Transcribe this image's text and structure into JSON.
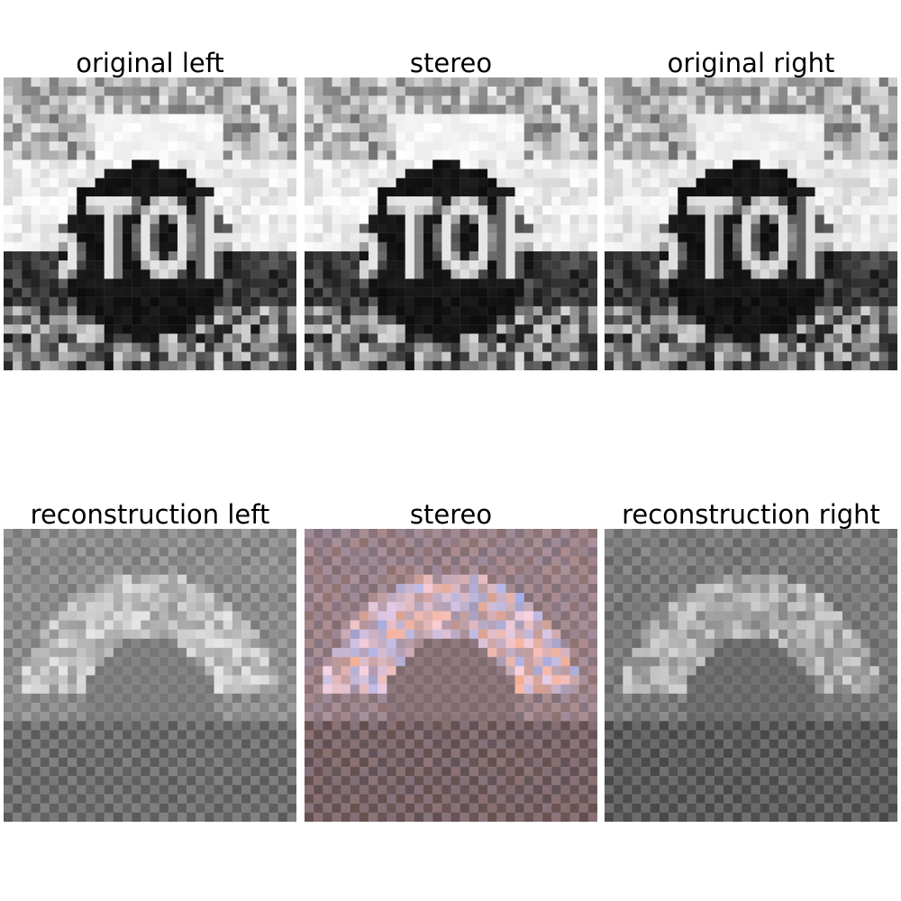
{
  "figure": {
    "top_row": {
      "original_left_title": "original left",
      "stereo_title": "stereo",
      "original_right_title": "original right"
    },
    "bottom_row": {
      "reconstruction_left_title": "reconstruction left",
      "stereo_title": "stereo",
      "reconstruction_right_title": "reconstruction right"
    },
    "sign_text": "STOP",
    "colors": {
      "background": "#ffffff",
      "stereo_warm_tint": "#c8a07a",
      "stereo_cool_tint": "#9fb4cc",
      "reconstruction_gray": "#8c8c8c"
    }
  }
}
